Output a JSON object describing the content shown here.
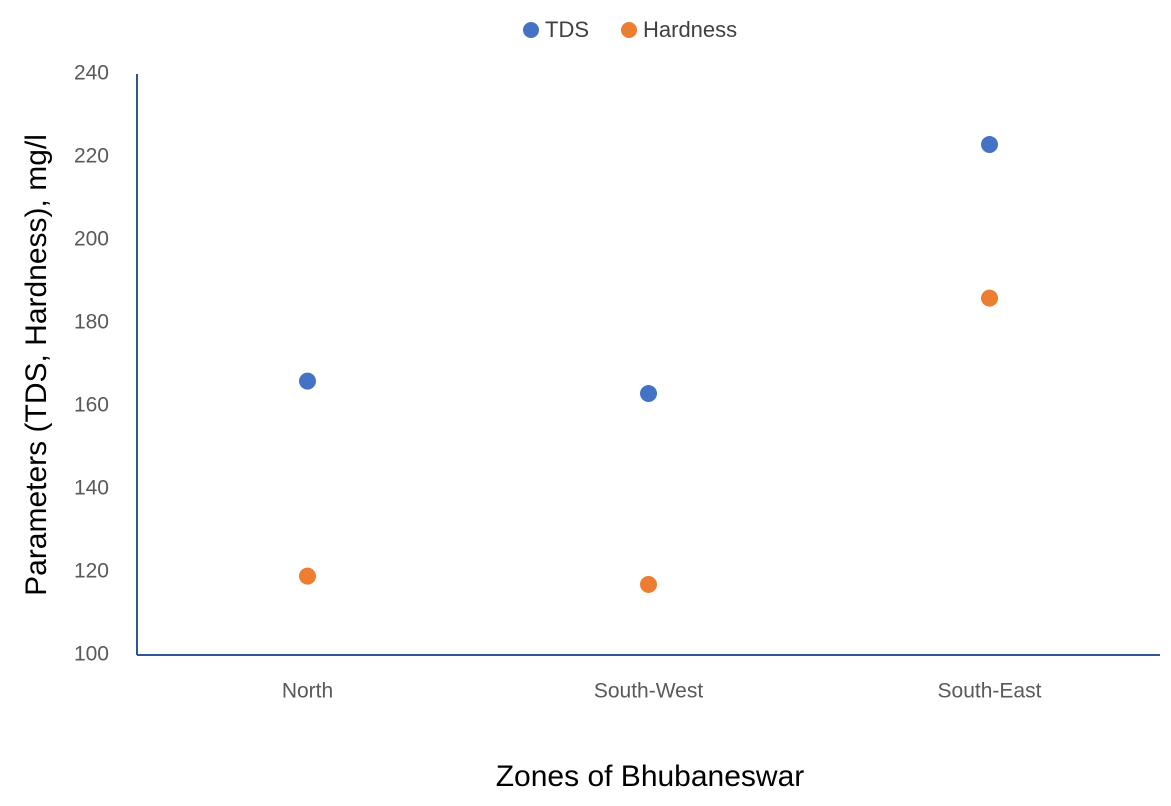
{
  "chart_data": {
    "type": "scatter",
    "x_label": "Zones of Bhubaneswar",
    "y_label": "Parameters (TDS, Hardness),  mg/l",
    "categories": [
      "North",
      "South-West",
      "South-East"
    ],
    "series": [
      {
        "name": "TDS",
        "color": "#4472c4",
        "values": [
          166,
          163,
          223
        ]
      },
      {
        "name": "Hardness",
        "color": "#ed7d31",
        "values": [
          119,
          117,
          186
        ]
      }
    ],
    "ylim": [
      100,
      240
    ],
    "yticks": [
      100,
      120,
      140,
      160,
      180,
      200,
      220,
      240
    ],
    "grid": false,
    "legend": "top"
  }
}
